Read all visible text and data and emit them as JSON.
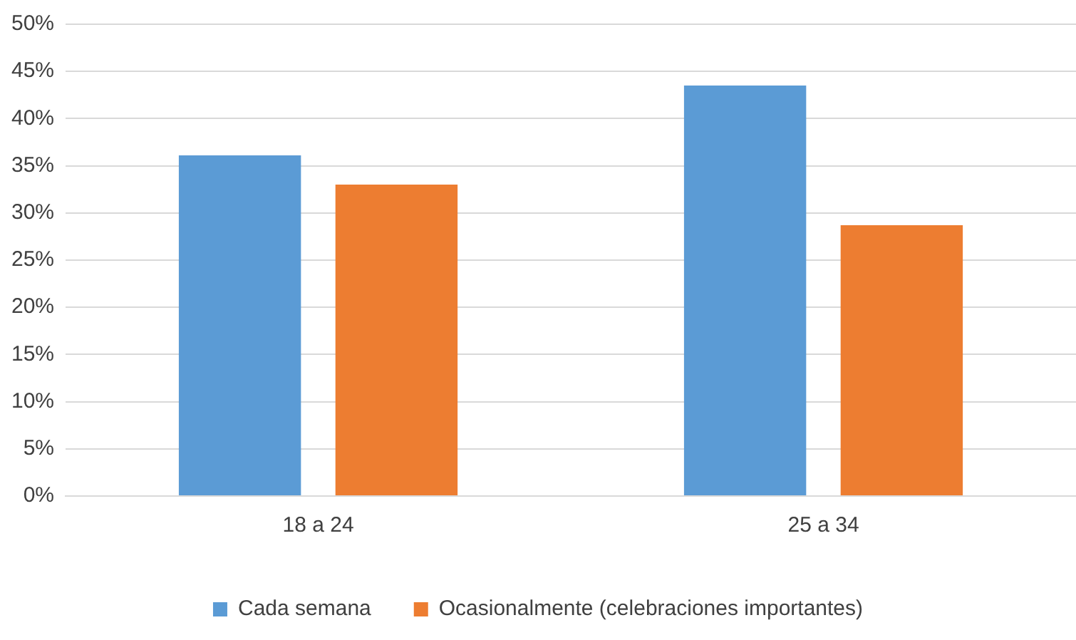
{
  "chart_data": {
    "type": "bar",
    "categories": [
      "18 a 24",
      "25 a 34"
    ],
    "series": [
      {
        "name": "Cada semana",
        "color": "#5b9bd5",
        "values": [
          36.1,
          43.5
        ]
      },
      {
        "name": "Ocasionalmente (celebraciones importantes)",
        "color": "#ed7d31",
        "values": [
          33.0,
          28.7
        ]
      }
    ],
    "ylim": [
      0,
      50
    ],
    "yticks": [
      {
        "value": 0,
        "label": "0%"
      },
      {
        "value": 5,
        "label": "5%"
      },
      {
        "value": 10,
        "label": "10%"
      },
      {
        "value": 15,
        "label": "15%"
      },
      {
        "value": 20,
        "label": "20%"
      },
      {
        "value": 25,
        "label": "25%"
      },
      {
        "value": 30,
        "label": "30%"
      },
      {
        "value": 35,
        "label": "35%"
      },
      {
        "value": 40,
        "label": "40%"
      },
      {
        "value": 45,
        "label": "45%"
      },
      {
        "value": 50,
        "label": "50%"
      }
    ],
    "grid": "y",
    "legend": "bottom"
  }
}
